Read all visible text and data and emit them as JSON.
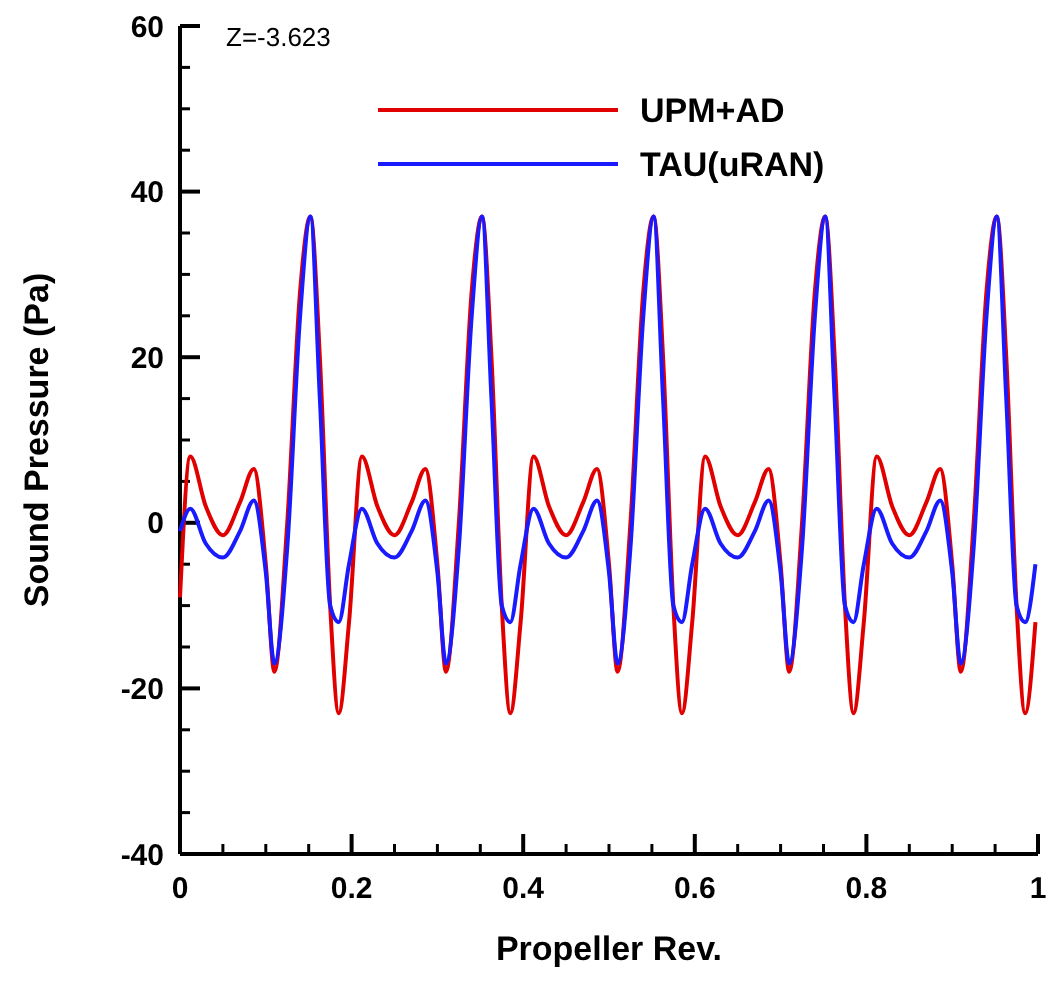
{
  "chart_data": {
    "type": "line",
    "xlabel": "Propeller Rev.",
    "ylabel": "Sound Pressure (Pa)",
    "annotations": [
      "Z=-3.623"
    ],
    "x": [
      0,
      0.012,
      0.03,
      0.05,
      0.07,
      0.086,
      0.1,
      0.11,
      0.125,
      0.14,
      0.152,
      0.163,
      0.175,
      0.185,
      0.197,
      0.212,
      0.23,
      0.25,
      0.27,
      0.286,
      0.3,
      0.31,
      0.325,
      0.34,
      0.352,
      0.363,
      0.375,
      0.385,
      0.397,
      0.412,
      0.43,
      0.45,
      0.47,
      0.486,
      0.5,
      0.51,
      0.525,
      0.54,
      0.552,
      0.563,
      0.575,
      0.585,
      0.597,
      0.612,
      0.63,
      0.65,
      0.67,
      0.686,
      0.7,
      0.71,
      0.725,
      0.74,
      0.752,
      0.763,
      0.775,
      0.785,
      0.797,
      0.812,
      0.83,
      0.85,
      0.87,
      0.886,
      0.9,
      0.91,
      0.925,
      0.94,
      0.952,
      0.963,
      0.975,
      0.985,
      0.997
    ],
    "series": [
      {
        "name": "UPM+AD",
        "color": "#e00000",
        "values": [
          -9,
          8,
          2,
          -1.5,
          2.5,
          6.5,
          -5,
          -18,
          0,
          28,
          37,
          20,
          -10,
          -23,
          -12,
          8,
          2,
          -1.5,
          2.5,
          6.5,
          -5,
          -18,
          0,
          28,
          37,
          20,
          -10,
          -23,
          -12,
          8,
          2,
          -1.5,
          2.5,
          6.5,
          -5,
          -18,
          0,
          28,
          37,
          20,
          -10,
          -23,
          -12,
          8,
          2,
          -1.5,
          2.5,
          6.5,
          -5,
          -18,
          0,
          28,
          37,
          20,
          -10,
          -23,
          -12,
          8,
          2,
          -1.5,
          2.5,
          6.5,
          -5,
          -18,
          0,
          28,
          37,
          20,
          -10,
          -23,
          -12
        ]
      },
      {
        "name": "TAU(uRAN)",
        "color": "#1a1aff",
        "values": [
          -1,
          1.7,
          -2.5,
          -4.2,
          -1,
          2.7,
          -6,
          -17,
          -3,
          25,
          37,
          15,
          -10,
          -12,
          -5,
          1.7,
          -2.5,
          -4.2,
          -1,
          2.7,
          -6,
          -17,
          -3,
          25,
          37,
          15,
          -10,
          -12,
          -5,
          1.7,
          -2.5,
          -4.2,
          -1,
          2.7,
          -6,
          -17,
          -3,
          25,
          37,
          15,
          -10,
          -12,
          -5,
          1.7,
          -2.5,
          -4.2,
          -1,
          2.7,
          -6,
          -17,
          -3,
          25,
          37,
          15,
          -10,
          -12,
          -5,
          1.7,
          -2.5,
          -4.2,
          -1,
          2.7,
          -6,
          -17,
          -3,
          25,
          37,
          15,
          -10,
          -12,
          -5
        ]
      }
    ],
    "xlim": [
      0,
      1
    ],
    "xticks": [
      0,
      0.2,
      0.4,
      0.6,
      0.8,
      1
    ],
    "ylim": [
      -40,
      60
    ],
    "yticks": [
      -40,
      -20,
      0,
      20,
      40,
      60
    ],
    "legend": "top right",
    "grid": false,
    "line_style": "solid"
  }
}
